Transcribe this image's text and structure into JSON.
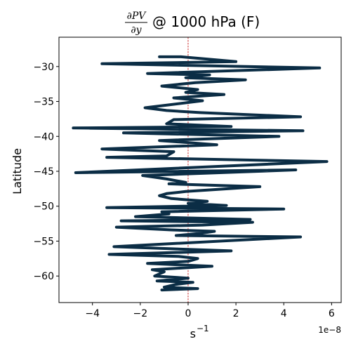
{
  "chart_data": {
    "type": "line",
    "title": {
      "frac_numerator": "∂PV",
      "frac_denominator": "∂y",
      "suffix": "@ 1000 hPa (F)"
    },
    "xlabel": "s",
    "xlabel_exponent": "−1",
    "ylabel": "Latitude",
    "x_offset_label": "1e−8",
    "xlim": [
      -5.4,
      6.4
    ],
    "ylim": [
      -63.8,
      -25.8
    ],
    "x_ticks": [
      -4,
      -2,
      0,
      2,
      4,
      6
    ],
    "x_tick_labels": [
      "−4",
      "−2",
      "0",
      "2",
      "4",
      "6"
    ],
    "y_ticks": [
      -30,
      -35,
      -40,
      -45,
      -50,
      -55,
      -60
    ],
    "y_tick_labels": [
      "−30",
      "−35",
      "−40",
      "−45",
      "−50",
      "−55",
      "−60"
    ],
    "zero_line": {
      "x": 0,
      "color": "#c00000",
      "style": "dashed"
    },
    "grid": false,
    "line_color": "#0b2d45",
    "series": [
      {
        "x": [
          -1.2,
          -0.3,
          2.0,
          -3.6,
          5.5,
          -1.7,
          0.9,
          -0.1,
          2.4,
          0.3,
          -1.1,
          0.4,
          -0.1,
          1.5,
          -0.6,
          0.6,
          -1.8,
          -0.9,
          0.5,
          4.7,
          -0.6,
          -0.9,
          1.8,
          -4.8,
          4.8,
          -2.7,
          3.8,
          -1.2,
          1.2,
          -3.6,
          -0.6,
          -0.9,
          -3.4,
          5.8,
          -4.7,
          4.5,
          -1.9,
          -0.9,
          -0.1,
          -0.8,
          1.0,
          3.0,
          -0.1,
          -0.9,
          -1.2,
          -0.7,
          0.8,
          0.0,
          1.6,
          -3.4,
          4.0,
          -1.1,
          -0.8,
          -2.2,
          2.6,
          -2.8,
          2.7,
          0.6,
          -3.0,
          -0.7,
          1.1,
          0.5,
          -0.5,
          4.7,
          -3.1,
          1.8,
          -3.3,
          -0.4,
          0.4,
          0.0,
          -1.7,
          1.0,
          -1.5,
          -1.0,
          -1.4,
          0.0,
          -1.3,
          0.2,
          -0.5,
          -1.0,
          0.4,
          -1.1
        ],
        "y": [
          -28.6,
          -28.6,
          -29.3,
          -29.6,
          -30.2,
          -31.0,
          -31.2,
          -31.6,
          -31.9,
          -32.3,
          -32.8,
          -33.3,
          -33.7,
          -34.0,
          -34.5,
          -34.9,
          -35.9,
          -36.3,
          -36.6,
          -37.2,
          -37.6,
          -38.2,
          -38.6,
          -38.8,
          -39.2,
          -39.5,
          -40.0,
          -40.6,
          -41.2,
          -41.8,
          -42.2,
          -42.8,
          -43.0,
          -43.6,
          -45.2,
          -44.8,
          -45.6,
          -46.1,
          -46.6,
          -46.8,
          -47.0,
          -47.2,
          -47.9,
          -48.2,
          -48.5,
          -48.9,
          -49.3,
          -49.6,
          -49.9,
          -50.2,
          -50.4,
          -50.8,
          -51.1,
          -51.5,
          -51.9,
          -52.1,
          -52.3,
          -52.7,
          -53.0,
          -53.4,
          -53.6,
          -53.9,
          -54.2,
          -54.4,
          -55.8,
          -56.4,
          -56.9,
          -57.2,
          -57.5,
          -57.9,
          -58.2,
          -58.6,
          -59.1,
          -59.4,
          -60.0,
          -60.3,
          -60.7,
          -60.9,
          -61.2,
          -61.6,
          -61.8,
          -62.0
        ]
      }
    ]
  }
}
